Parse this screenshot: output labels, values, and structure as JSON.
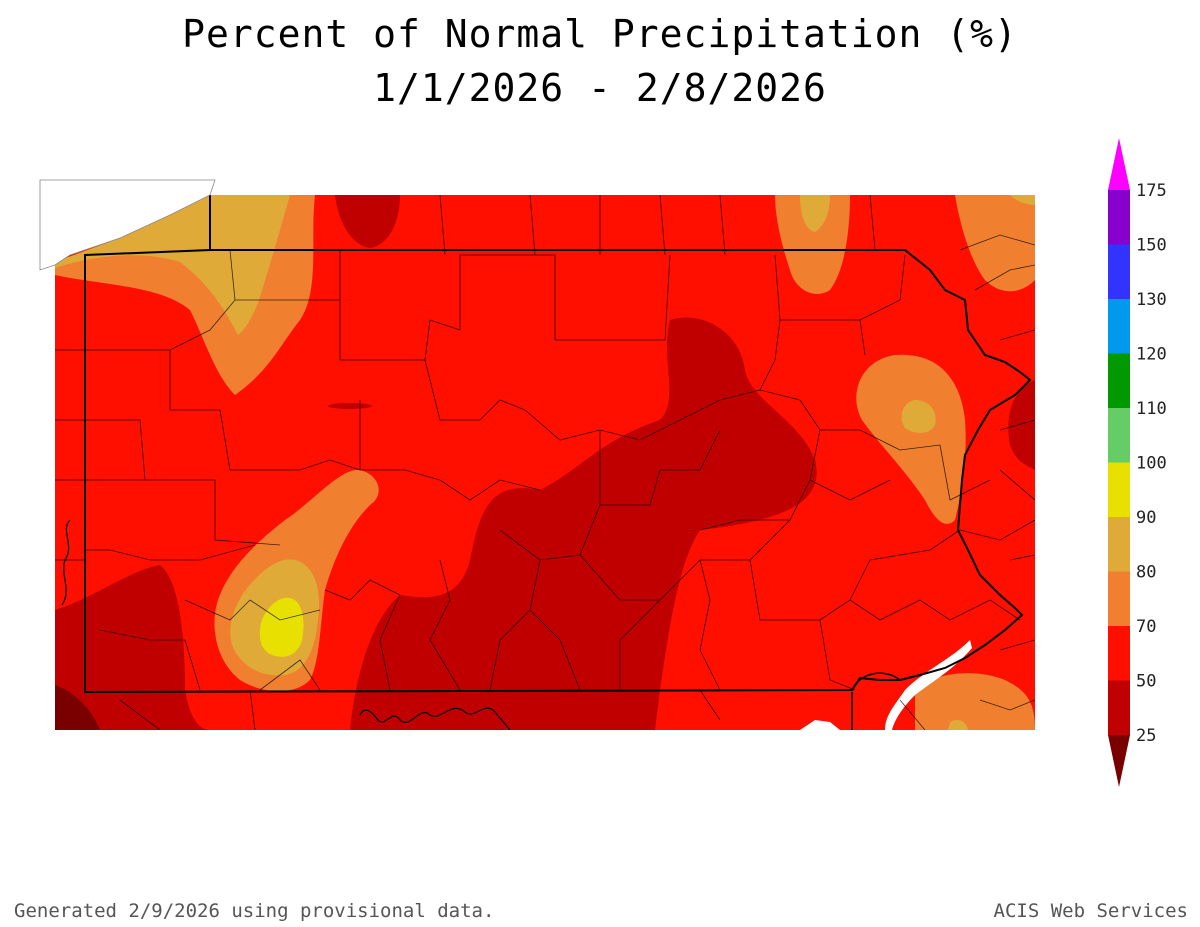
{
  "title": {
    "line1": "Percent of Normal Precipitation (%)",
    "line2": "1/1/2026 - 2/8/2026"
  },
  "legend": {
    "bins": [
      {
        "range": "below 25",
        "color": "#7a0000"
      },
      {
        "range": "25-50",
        "color": "#c00000"
      },
      {
        "range": "50-70",
        "color": "#ff0f00"
      },
      {
        "range": "70-80",
        "color": "#f08030"
      },
      {
        "range": "80-90",
        "color": "#e0aa38"
      },
      {
        "range": "90-100",
        "color": "#e8e000"
      },
      {
        "range": "100-110",
        "color": "#66cc66"
      },
      {
        "range": "110-120",
        "color": "#009900"
      },
      {
        "range": "120-130",
        "color": "#0099ee"
      },
      {
        "range": "130-150",
        "color": "#3333ff"
      },
      {
        "range": "150-175",
        "color": "#8800cc"
      },
      {
        "range": "above 175",
        "color": "#ff00ff"
      }
    ],
    "labels": [
      "25",
      "50",
      "70",
      "80",
      "90",
      "100",
      "110",
      "120",
      "130",
      "150",
      "175"
    ]
  },
  "footer": {
    "left": "Generated 2/9/2026  using provisional data.",
    "right": "ACIS Web Services"
  }
}
